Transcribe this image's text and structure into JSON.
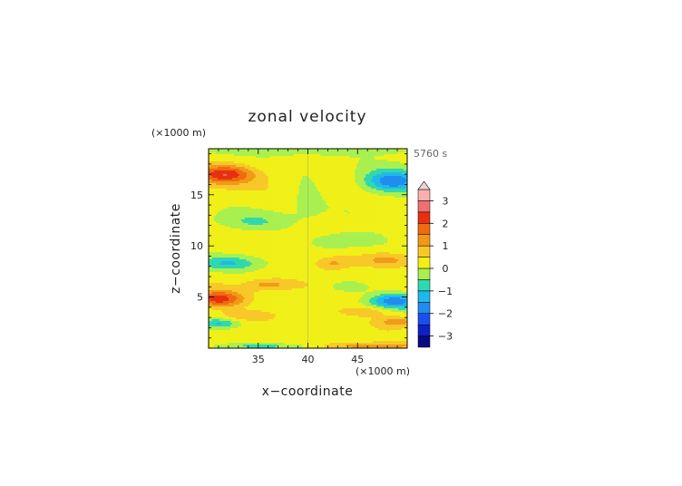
{
  "chart_data": {
    "type": "heatmap",
    "title": "zonal velocity",
    "xlabel": "x−coordinate",
    "ylabel": "z−coordinate",
    "x_unit": "(×1000 m)",
    "y_unit": "(×1000 m)",
    "time_label": "5760 s",
    "xlim": [
      30,
      50
    ],
    "ylim": [
      0,
      19.5
    ],
    "x_ticks": [
      35,
      40,
      45
    ],
    "y_ticks": [
      5,
      10,
      15
    ],
    "colorbar": {
      "levels": [
        -3.5,
        -3,
        -2.5,
        -2,
        -1.5,
        -1,
        -0.5,
        0,
        0.5,
        1,
        1.5,
        2,
        2.5,
        3,
        3.5
      ],
      "tick_values": [
        -3,
        -2,
        -1,
        0,
        1,
        2,
        3
      ],
      "colors": [
        "#0a0a80",
        "#1020c8",
        "#1a50f0",
        "#1e8cf0",
        "#20b8e8",
        "#30d8b0",
        "#a8f050",
        "#f0f018",
        "#f8c828",
        "#f09a18",
        "#f06a10",
        "#e83010",
        "#f07070",
        "#f8b0b0"
      ],
      "over_color": "#f0d0d0"
    },
    "features": [
      {
        "x": 31.5,
        "z": 17.0,
        "sx": 3.0,
        "sz": 0.9,
        "u": 2.2
      },
      {
        "x": 48.5,
        "z": 16.3,
        "sx": 3.0,
        "sz": 1.1,
        "u": -2.2
      },
      {
        "x": 31.0,
        "z": 4.8,
        "sx": 2.5,
        "sz": 0.8,
        "u": 2.0
      },
      {
        "x": 48.8,
        "z": 4.6,
        "sx": 2.5,
        "sz": 0.8,
        "u": -2.0
      },
      {
        "x": 32.0,
        "z": 8.3,
        "sx": 3.0,
        "sz": 0.7,
        "u": -1.1
      },
      {
        "x": 48.0,
        "z": 8.6,
        "sx": 3.0,
        "sz": 0.7,
        "u": 1.0
      },
      {
        "x": 44.0,
        "z": 10.6,
        "sx": 4.0,
        "sz": 0.9,
        "u": -0.8
      },
      {
        "x": 34.5,
        "z": 12.3,
        "sx": 4.0,
        "sz": 0.9,
        "u": -0.7
      },
      {
        "x": 31.0,
        "z": 2.4,
        "sx": 2.0,
        "sz": 0.5,
        "u": -1.2
      },
      {
        "x": 49.0,
        "z": 2.6,
        "sx": 2.0,
        "sz": 0.5,
        "u": 1.1
      },
      {
        "x": 40.0,
        "z": 19.3,
        "sx": 12.0,
        "sz": 0.4,
        "u": -0.7
      },
      {
        "x": 36.0,
        "z": 0.2,
        "sx": 6.0,
        "sz": 0.3,
        "u": -0.9
      },
      {
        "x": 46.0,
        "z": 0.2,
        "sx": 5.0,
        "sz": 0.3,
        "u": 1.2
      },
      {
        "x": 40.0,
        "z": 15.0,
        "sx": 1.5,
        "sz": 2.0,
        "u": -0.5
      },
      {
        "x": 36.0,
        "z": 6.2,
        "sx": 2.0,
        "sz": 0.5,
        "u": 0.9
      },
      {
        "x": 44.0,
        "z": 6.0,
        "sx": 2.0,
        "sz": 0.5,
        "u": -0.8
      },
      {
        "x": 34.0,
        "z": 3.2,
        "sx": 3.0,
        "sz": 0.5,
        "u": 0.8
      },
      {
        "x": 46.0,
        "z": 3.6,
        "sx": 3.0,
        "sz": 0.5,
        "u": 0.8
      },
      {
        "x": 42.5,
        "z": 8.3,
        "sx": 2.0,
        "sz": 0.7,
        "u": 1.0
      }
    ]
  }
}
